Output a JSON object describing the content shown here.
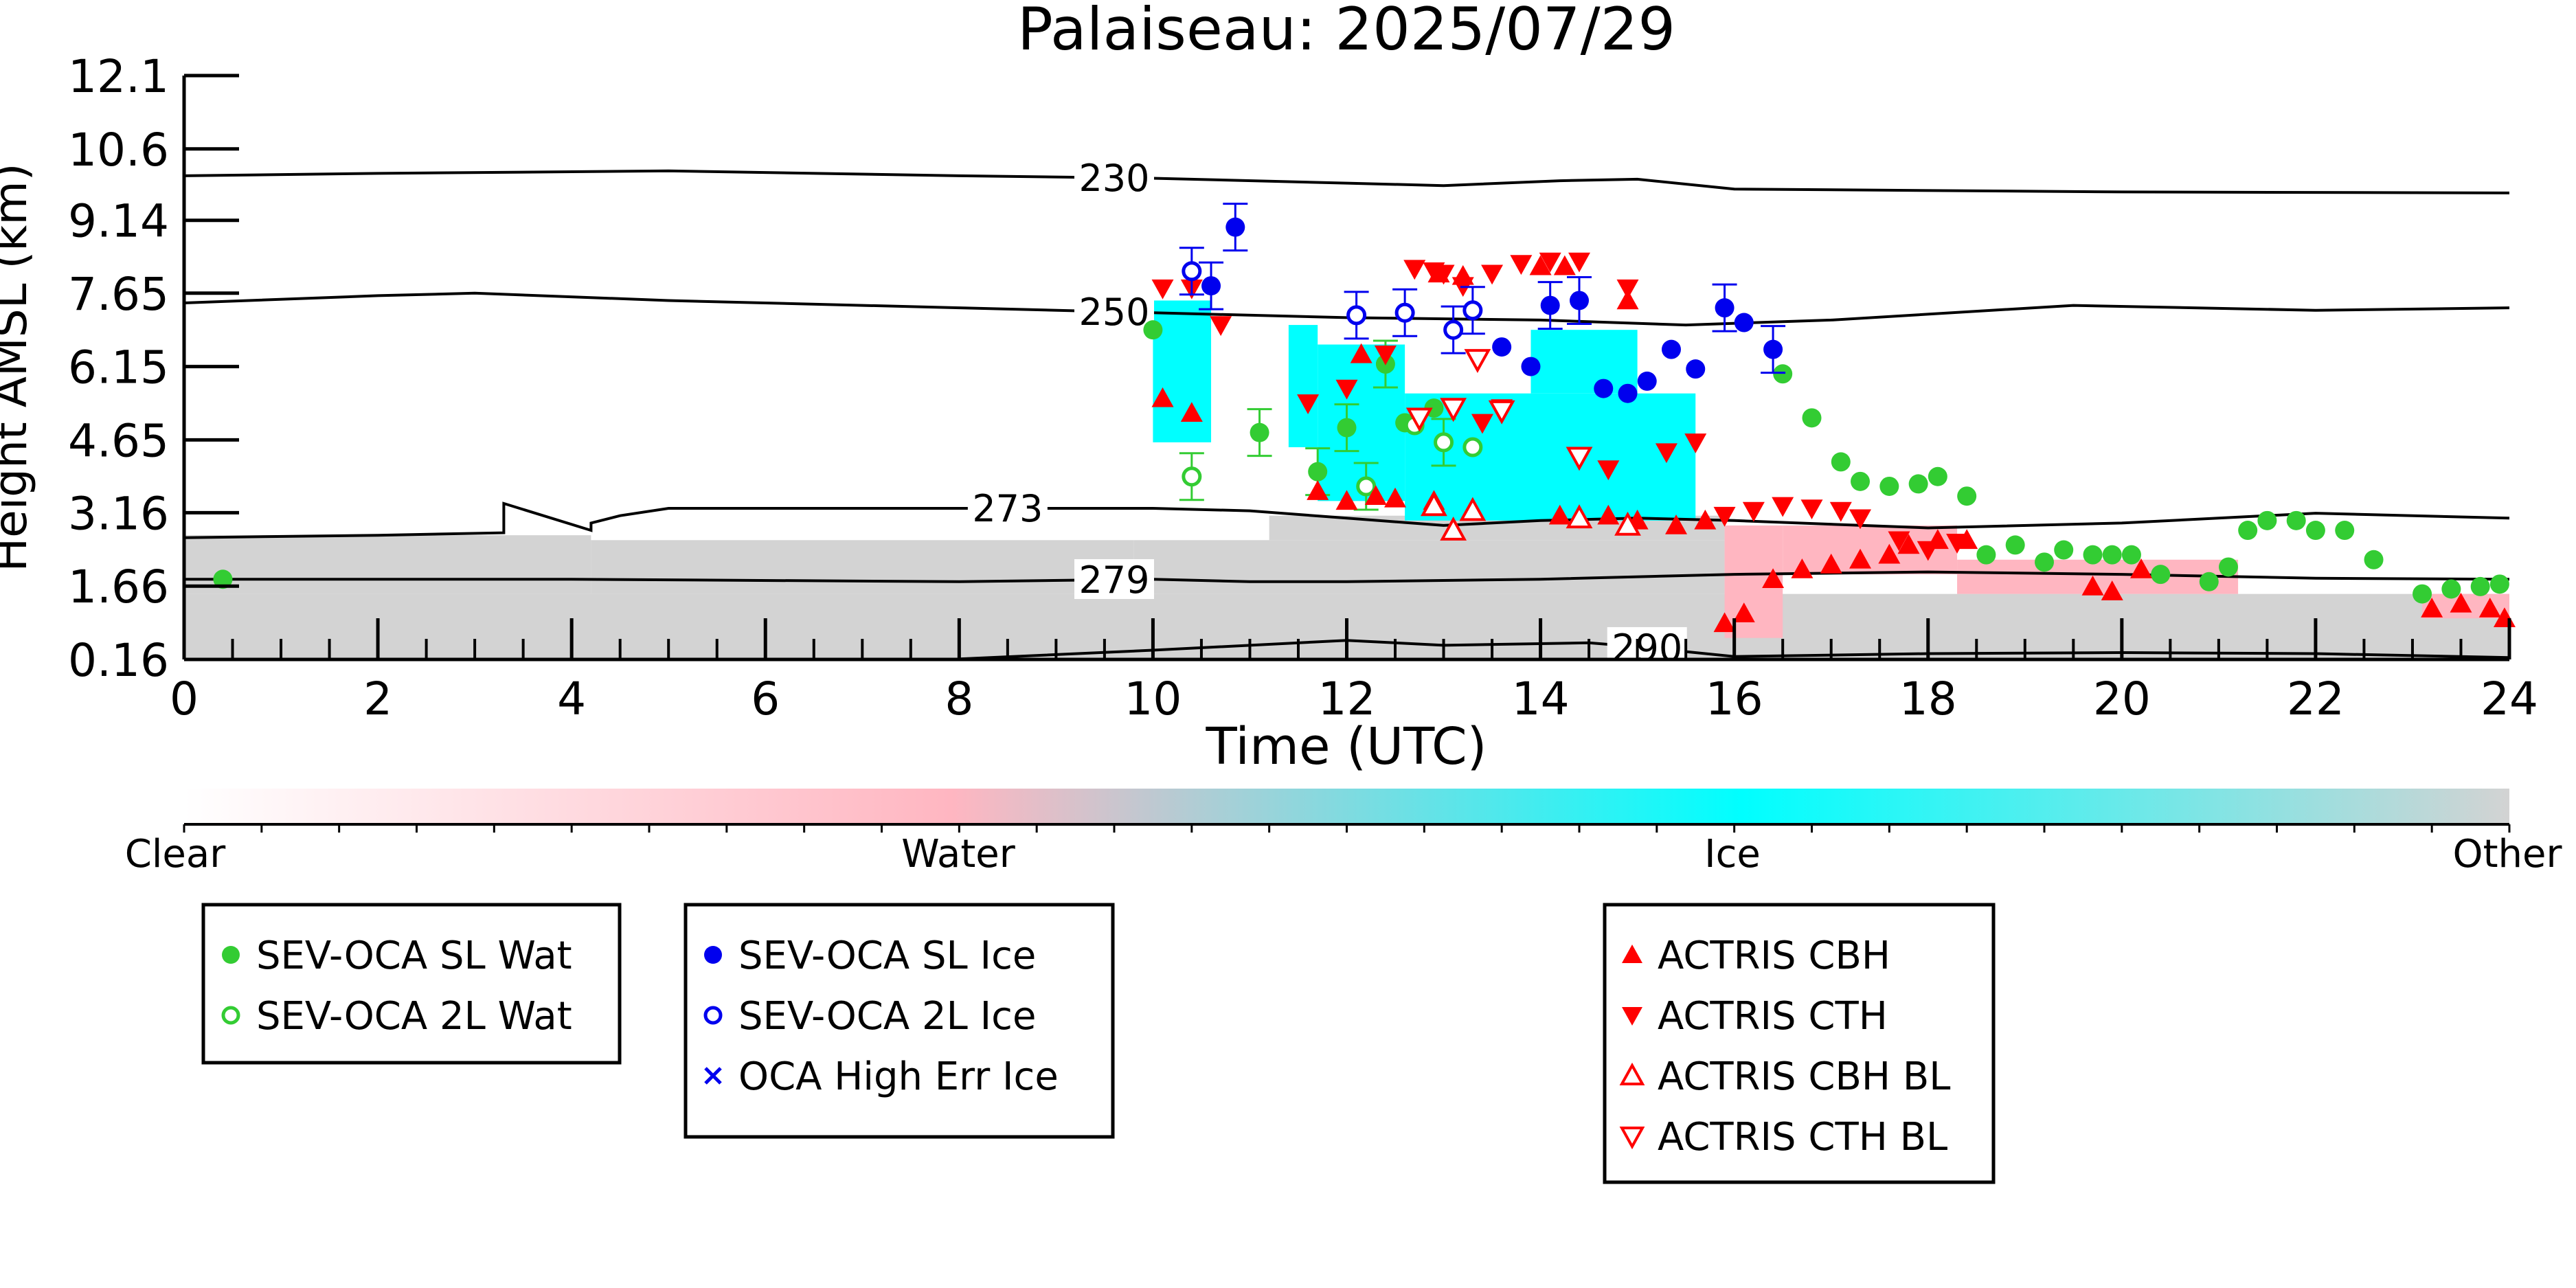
{
  "chart_data": {
    "type": "scatter",
    "title": "Palaiseau: 2025/07/29",
    "xlabel": "Time (UTC)",
    "ylabel": "Height AMSL (km)",
    "xlim": [
      0,
      24
    ],
    "ylim": [
      0.16,
      12.1
    ],
    "x_ticks": [
      "0",
      "2",
      "4",
      "6",
      "8",
      "10",
      "12",
      "14",
      "16",
      "18",
      "20",
      "22",
      "24"
    ],
    "y_ticks": [
      "0.16",
      "1.66",
      "3.16",
      "4.65",
      "6.15",
      "7.65",
      "9.14",
      "10.6",
      "12.1"
    ],
    "grid": false,
    "colorbar": {
      "labels": [
        "Clear",
        "Water",
        "Ice",
        "Other"
      ],
      "colors": [
        "#ffffff",
        "#ffb6c1",
        "#00ffff",
        "#d3d3d3"
      ]
    },
    "temperature_contours": [
      {
        "label": "230",
        "label_x": 9.6,
        "points": [
          [
            0,
            10.05
          ],
          [
            2,
            10.1
          ],
          [
            5,
            10.15
          ],
          [
            8,
            10.05
          ],
          [
            10,
            10
          ],
          [
            12,
            9.9
          ],
          [
            13,
            9.85
          ],
          [
            14.2,
            9.95
          ],
          [
            15,
            9.98
          ],
          [
            16,
            9.78
          ],
          [
            20,
            9.72
          ],
          [
            24,
            9.7
          ]
        ]
      },
      {
        "label": "250",
        "label_x": 9.6,
        "points": [
          [
            0,
            7.45
          ],
          [
            2,
            7.6
          ],
          [
            3,
            7.65
          ],
          [
            5,
            7.5
          ],
          [
            8,
            7.35
          ],
          [
            10,
            7.25
          ],
          [
            12,
            7.15
          ],
          [
            14,
            7.1
          ],
          [
            15.5,
            7.0
          ],
          [
            17,
            7.1
          ],
          [
            19.5,
            7.4
          ],
          [
            22,
            7.3
          ],
          [
            24,
            7.35
          ]
        ]
      },
      {
        "label": "273",
        "label_x": 8.5,
        "points": [
          [
            0,
            2.65
          ],
          [
            2,
            2.7
          ],
          [
            3.3,
            2.75
          ],
          [
            3.3,
            3.35
          ],
          [
            4.2,
            2.8
          ],
          [
            4.2,
            2.95
          ],
          [
            4.5,
            3.1
          ],
          [
            5,
            3.25
          ],
          [
            8,
            3.25
          ],
          [
            10,
            3.25
          ],
          [
            11,
            3.2
          ],
          [
            12,
            3.05
          ],
          [
            13,
            2.9
          ],
          [
            14,
            3.0
          ],
          [
            15,
            3.05
          ],
          [
            16,
            3.0
          ],
          [
            18,
            2.85
          ],
          [
            20,
            2.95
          ],
          [
            22,
            3.15
          ],
          [
            24,
            3.05
          ]
        ]
      },
      {
        "label": "279",
        "label_x": 9.6,
        "points": [
          [
            0,
            1.8
          ],
          [
            4,
            1.8
          ],
          [
            8,
            1.75
          ],
          [
            10,
            1.8
          ],
          [
            11,
            1.75
          ],
          [
            12,
            1.75
          ],
          [
            14,
            1.8
          ],
          [
            16,
            1.9
          ],
          [
            18,
            1.95
          ],
          [
            20,
            1.9
          ],
          [
            22,
            1.82
          ],
          [
            24,
            1.8
          ]
        ]
      },
      {
        "label": "290",
        "label_x": 15.1,
        "points": [
          [
            8,
            0.17
          ],
          [
            10,
            0.35
          ],
          [
            12,
            0.55
          ],
          [
            13,
            0.45
          ],
          [
            14.5,
            0.5
          ],
          [
            15,
            0.42
          ],
          [
            16,
            0.22
          ],
          [
            18,
            0.28
          ],
          [
            20,
            0.3
          ],
          [
            22,
            0.28
          ],
          [
            24,
            0.2
          ]
        ]
      }
    ],
    "series": [
      {
        "name": "SEV-OCA SL Wat",
        "color": "#33cc33",
        "marker": "circle-filled",
        "points": [
          [
            0.4,
            1.8
          ],
          [
            10.0,
            6.9
          ],
          [
            11.1,
            4.8
          ],
          [
            11.7,
            4.0
          ],
          [
            12.0,
            4.9
          ],
          [
            12.4,
            6.2
          ],
          [
            12.6,
            5.0
          ],
          [
            12.9,
            5.3
          ],
          [
            16.5,
            6.0
          ],
          [
            16.8,
            5.1
          ],
          [
            17.1,
            4.2
          ],
          [
            17.3,
            3.8
          ],
          [
            17.6,
            3.7
          ],
          [
            17.9,
            3.75
          ],
          [
            18.1,
            3.9
          ],
          [
            18.4,
            3.5
          ],
          [
            18.6,
            2.3
          ],
          [
            18.9,
            2.5
          ],
          [
            19.2,
            2.15
          ],
          [
            19.4,
            2.4
          ],
          [
            19.7,
            2.3
          ],
          [
            19.9,
            2.3
          ],
          [
            20.1,
            2.3
          ],
          [
            20.4,
            1.9
          ],
          [
            20.9,
            1.75
          ],
          [
            21.1,
            2.05
          ],
          [
            21.3,
            2.8
          ],
          [
            21.5,
            3.0
          ],
          [
            21.8,
            3.0
          ],
          [
            22.0,
            2.8
          ],
          [
            22.3,
            2.8
          ],
          [
            22.6,
            2.2
          ],
          [
            23.1,
            1.5
          ],
          [
            23.4,
            1.6
          ],
          [
            23.7,
            1.65
          ],
          [
            23.9,
            1.7
          ]
        ],
        "error_bars_on": [
          10.3,
          11.1,
          11.7,
          12.0,
          12.4
        ]
      },
      {
        "name": "SEV-OCA 2L Wat",
        "color": "#33cc33",
        "marker": "circle-open",
        "points": [
          [
            10.4,
            3.9
          ],
          [
            12.2,
            3.7
          ],
          [
            12.7,
            4.95
          ],
          [
            13.0,
            4.6
          ],
          [
            13.3,
            4.5
          ]
        ],
        "error_bars_on": [
          10.4,
          12.2,
          13.0
        ]
      },
      {
        "name": "SEV-OCA SL Ice",
        "color": "#0000ee",
        "marker": "circle-filled",
        "points": [
          [
            10.6,
            7.8
          ],
          [
            10.85,
            9.0
          ],
          [
            13.6,
            6.55
          ],
          [
            13.9,
            6.15
          ],
          [
            14.1,
            7.4
          ],
          [
            14.4,
            7.5
          ],
          [
            14.65,
            5.7
          ],
          [
            14.9,
            5.6
          ],
          [
            15.1,
            5.85
          ],
          [
            15.35,
            6.5
          ],
          [
            15.6,
            6.1
          ],
          [
            15.9,
            7.35
          ],
          [
            16.1,
            7.05
          ],
          [
            16.4,
            6.5
          ]
        ],
        "error_bars_on": [
          10.6,
          10.85,
          14.1,
          14.4,
          15.9,
          16.4
        ]
      },
      {
        "name": "SEV-OCA 2L Ice",
        "color": "#0000ee",
        "marker": "circle-open",
        "points": [
          [
            10.4,
            8.1
          ],
          [
            12.1,
            7.2
          ],
          [
            12.6,
            7.25
          ],
          [
            13.1,
            6.9
          ],
          [
            13.3,
            7.3
          ]
        ],
        "error_bars_on": [
          10.4,
          12.1,
          12.6,
          13.1,
          13.3
        ]
      },
      {
        "name": "OCA High Err Ice",
        "color": "#0000ee",
        "marker": "x",
        "points": []
      },
      {
        "name": "ACTRIS CBH",
        "color": "#ff0000",
        "marker": "triangle-up-filled",
        "points": [
          [
            10.1,
            5.5
          ],
          [
            10.4,
            5.2
          ],
          [
            11.7,
            3.6
          ],
          [
            12.0,
            3.4
          ],
          [
            12.3,
            3.5
          ],
          [
            12.5,
            3.45
          ],
          [
            12.9,
            3.4
          ],
          [
            14.2,
            3.1
          ],
          [
            14.7,
            3.1
          ],
          [
            15.0,
            3.0
          ],
          [
            15.4,
            2.9
          ],
          [
            15.7,
            3.0
          ],
          [
            15.9,
            0.9
          ],
          [
            16.1,
            1.1
          ],
          [
            16.4,
            1.8
          ],
          [
            16.7,
            2.0
          ],
          [
            17.0,
            2.1
          ],
          [
            17.3,
            2.2
          ],
          [
            17.6,
            2.3
          ],
          [
            17.8,
            2.5
          ],
          [
            18.1,
            2.6
          ],
          [
            18.4,
            2.6
          ],
          [
            19.7,
            1.65
          ],
          [
            19.9,
            1.55
          ],
          [
            20.2,
            2.0
          ],
          [
            23.2,
            1.2
          ],
          [
            23.5,
            1.3
          ],
          [
            23.8,
            1.2
          ],
          [
            23.95,
            1.0
          ],
          [
            12.15,
            6.4
          ],
          [
            12.95,
            8.05
          ],
          [
            13.2,
            8.0
          ],
          [
            14.0,
            8.2
          ],
          [
            14.25,
            8.2
          ],
          [
            14.9,
            7.5
          ]
        ]
      },
      {
        "name": "ACTRIS CTH",
        "color": "#ff0000",
        "marker": "triangle-down-filled",
        "points": [
          [
            10.1,
            7.75
          ],
          [
            10.4,
            7.75
          ],
          [
            10.7,
            7.0
          ],
          [
            11.6,
            5.4
          ],
          [
            12.0,
            5.7
          ],
          [
            12.4,
            6.4
          ],
          [
            12.7,
            8.15
          ],
          [
            13.0,
            8.05
          ],
          [
            13.2,
            7.8
          ],
          [
            13.5,
            8.05
          ],
          [
            13.8,
            8.25
          ],
          [
            14.1,
            8.3
          ],
          [
            14.4,
            8.3
          ],
          [
            14.7,
            4.05
          ],
          [
            14.9,
            7.75
          ],
          [
            15.3,
            4.4
          ],
          [
            15.6,
            4.6
          ],
          [
            15.9,
            3.1
          ],
          [
            16.2,
            3.2
          ],
          [
            16.5,
            3.3
          ],
          [
            16.8,
            3.25
          ],
          [
            17.1,
            3.2
          ],
          [
            17.3,
            3.05
          ],
          [
            17.7,
            2.6
          ],
          [
            18.0,
            2.4
          ],
          [
            18.3,
            2.55
          ],
          [
            12.9,
            8.1
          ],
          [
            13.4,
            5.0
          ],
          [
            13.6,
            5.3
          ]
        ]
      },
      {
        "name": "ACTRIS CBH BL",
        "color": "#ff0000",
        "marker": "triangle-up-open",
        "points": [
          [
            12.9,
            3.3
          ],
          [
            13.3,
            3.2
          ],
          [
            14.4,
            3.05
          ],
          [
            14.9,
            2.9
          ],
          [
            13.1,
            2.8
          ]
        ]
      },
      {
        "name": "ACTRIS CTH BL",
        "color": "#ff0000",
        "marker": "triangle-down-open",
        "points": [
          [
            13.1,
            5.3
          ],
          [
            13.6,
            5.25
          ],
          [
            14.4,
            4.3
          ],
          [
            13.35,
            6.3
          ],
          [
            12.75,
            5.1
          ]
        ]
      }
    ],
    "legend_groups": [
      [
        "SEV-OCA SL Wat",
        "SEV-OCA 2L Wat"
      ],
      [
        "SEV-OCA SL Ice",
        "SEV-OCA 2L Ice",
        "OCA High Err Ice"
      ],
      [
        "ACTRIS CBH",
        "ACTRIS CTH",
        "ACTRIS CBH BL",
        "ACTRIS CTH BL"
      ]
    ]
  }
}
